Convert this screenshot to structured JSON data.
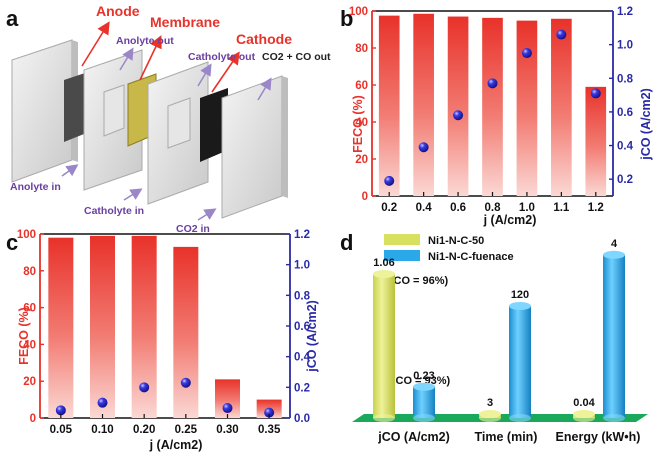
{
  "panel_labels": {
    "a": "a",
    "b": "b",
    "c": "c",
    "d": "d"
  },
  "schematic": {
    "anode": "Anode",
    "membrane": "Membrane",
    "cathode": "Cathode",
    "anolyte_out": "Anolyte out",
    "catholyte_out": "Catholyte out",
    "co2_co_out": "CO2 + CO out",
    "anolyte_in": "Anolyte in",
    "catholyte_in": "Catholyte in",
    "co2_in": "CO2 in"
  },
  "colors": {
    "fe_bar": "#e8322a",
    "fe_axis": "#e8322a",
    "jco_axis": "#2a2aa8",
    "sphere": "#2020c8",
    "yellow": "#d8e060",
    "blue": "#2aa8e8",
    "platform": "#1aa85a"
  },
  "chart_data": [
    {
      "id": "b",
      "type": "bar",
      "categories": [
        "0.2",
        "0.4",
        "0.6",
        "0.8",
        "1.0",
        "1.1",
        "1.2"
      ],
      "series": [
        {
          "name": "FE_CO",
          "axis": "left",
          "values": [
            97.5,
            98.5,
            97,
            96.3,
            94.8,
            95.8,
            59
          ]
        },
        {
          "name": "j_CO",
          "axis": "right",
          "type": "scatter",
          "values": [
            0.19,
            0.39,
            0.58,
            0.77,
            0.95,
            1.06,
            0.71
          ]
        }
      ],
      "xlabel": "j (A/cm2)",
      "ylabel": "FECO (%)",
      "y2label": "jCO (A/cm2)",
      "ylim": [
        0,
        100
      ],
      "y2lim": [
        0.1,
        1.2
      ],
      "yticks": [
        "0",
        "20",
        "40",
        "60",
        "80",
        "100"
      ],
      "y2ticks": [
        "0.2",
        "0.4",
        "0.6",
        "0.8",
        "1.0",
        "1.2"
      ]
    },
    {
      "id": "c",
      "type": "bar",
      "categories": [
        "0.05",
        "0.10",
        "0.20",
        "0.25",
        "0.30",
        "0.35"
      ],
      "series": [
        {
          "name": "FE_CO",
          "axis": "left",
          "values": [
            98,
            99,
            99,
            93,
            21,
            10
          ]
        },
        {
          "name": "j_CO",
          "axis": "right",
          "type": "scatter",
          "values": [
            0.05,
            0.1,
            0.2,
            0.23,
            0.065,
            0.035
          ]
        }
      ],
      "xlabel": "j (A/cm2)",
      "ylabel": "FECO (%)",
      "y2label": "jCO (A/cm2)",
      "ylim": [
        0,
        100
      ],
      "y2lim": [
        0,
        1.2
      ],
      "yticks": [
        "0",
        "20",
        "40",
        "60",
        "80",
        "100"
      ],
      "y2ticks": [
        "0.0",
        "0.2",
        "0.4",
        "0.6",
        "0.8",
        "1.0",
        "1.2"
      ]
    },
    {
      "id": "d",
      "type": "bar",
      "categories": [
        "jCO (A/cm2)",
        "Time (min)",
        "Energy (kW•h)"
      ],
      "series": [
        {
          "name": "Ni1-N-C-50",
          "values": [
            1.06,
            3,
            0.04
          ],
          "labels": [
            "1.06",
            "3",
            "0.04"
          ]
        },
        {
          "name": "Ni1-N-C-fuenace",
          "values": [
            0.23,
            120,
            4
          ],
          "labels": [
            "0.23",
            "120",
            "4"
          ]
        }
      ],
      "annotations": {
        "fe_yellow": "(FECO = 96%)",
        "fe_blue": "(FECO = 93%)"
      }
    }
  ]
}
